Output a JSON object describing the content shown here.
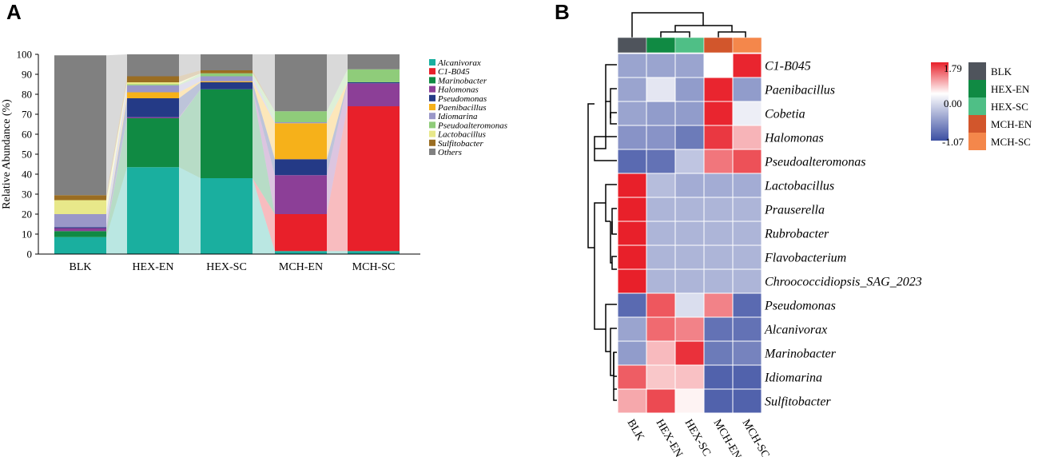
{
  "panels": {
    "a": "A",
    "b": "B"
  },
  "chart_data": [
    {
      "type": "stacked-bar",
      "ylabel": "Relative Abundance (%)",
      "ylim": [
        0,
        100
      ],
      "yticks": [
        "0",
        "10",
        "20",
        "30",
        "40",
        "50",
        "60",
        "70",
        "80",
        "90",
        "100"
      ],
      "categories": [
        "BLK",
        "HEX-EN",
        "HEX-SC",
        "MCH-EN",
        "MCH-SC"
      ],
      "series": [
        {
          "name": "Alcanivorax",
          "color": "#1aaf9f",
          "values": [
            8.5,
            43.5,
            38.0,
            1.5,
            1.5
          ]
        },
        {
          "name": "C1-B045",
          "color": "#e8202a",
          "values": [
            0,
            0,
            0,
            18.5,
            72.5
          ]
        },
        {
          "name": "Marinobacter",
          "color": "#108a43",
          "values": [
            3.0,
            24.5,
            44.5,
            0,
            0
          ]
        },
        {
          "name": "Halomonas",
          "color": "#8c3f97",
          "values": [
            1.5,
            0.5,
            0,
            19.5,
            11.5
          ]
        },
        {
          "name": "Pseudomonas",
          "color": "#243a86",
          "values": [
            0.5,
            9.5,
            3.5,
            8.0,
            0.5
          ]
        },
        {
          "name": "Paenibacillus",
          "color": "#f6b11a",
          "values": [
            0,
            3.0,
            0.5,
            18.0,
            0
          ]
        },
        {
          "name": "Idiomarina",
          "color": "#9a97c8",
          "values": [
            6.5,
            3.5,
            2.5,
            0.5,
            0
          ]
        },
        {
          "name": "Pseudoalteromonas",
          "color": "#8fcc7a",
          "values": [
            0,
            0.5,
            1.5,
            5.5,
            6.5
          ]
        },
        {
          "name": "Lactobacillus",
          "color": "#e8e88a",
          "values": [
            7.0,
            1.0,
            0,
            0,
            0
          ]
        },
        {
          "name": "Sulfitobacter",
          "color": "#9a6d22",
          "values": [
            2.5,
            3.0,
            1.5,
            0,
            0
          ]
        },
        {
          "name": "Others",
          "color": "#808080",
          "values": [
            70.0,
            11.0,
            8.0,
            28.5,
            7.5
          ]
        }
      ]
    },
    {
      "type": "heatmap",
      "columns": [
        "BLK",
        "HEX-EN",
        "HEX-SC",
        "MCH-EN",
        "MCH-SC"
      ],
      "column_colors": [
        "#4f545c",
        "#108a43",
        "#4fbf86",
        "#d2562c",
        "#f4874b"
      ],
      "rows": [
        "C1-B045",
        "Paenibacillus",
        "Cobetia",
        "Halomonas",
        "Pseudoalteromonas",
        "Lactobacillus",
        "Prauserella",
        "Rubrobacter",
        "Flavobacterium",
        "Chroococcidiopsis_SAG_2023",
        "Pseudomonas",
        "Alcanivorax",
        "Marinobacter",
        "Idiomarina",
        "Sulfitobacter"
      ],
      "values": [
        [
          -0.55,
          -0.55,
          -0.55,
          0.0,
          1.75
        ],
        [
          -0.55,
          -0.15,
          -0.6,
          1.75,
          -0.6
        ],
        [
          -0.55,
          -0.6,
          -0.6,
          1.75,
          -0.1
        ],
        [
          -0.65,
          -0.65,
          -0.8,
          1.6,
          0.6
        ],
        [
          -0.9,
          -0.85,
          -0.35,
          1.1,
          1.4
        ],
        [
          1.79,
          -0.4,
          -0.5,
          -0.5,
          -0.5
        ],
        [
          1.79,
          -0.45,
          -0.45,
          -0.45,
          -0.45
        ],
        [
          1.79,
          -0.45,
          -0.45,
          -0.45,
          -0.45
        ],
        [
          1.79,
          -0.45,
          -0.45,
          -0.45,
          -0.45
        ],
        [
          1.79,
          -0.45,
          -0.45,
          -0.45,
          -0.45
        ],
        [
          -0.9,
          1.35,
          -0.2,
          1.0,
          -0.9
        ],
        [
          -0.55,
          1.2,
          1.0,
          -0.85,
          -0.85
        ],
        [
          -0.6,
          0.55,
          1.65,
          -0.8,
          -0.75
        ],
        [
          1.3,
          0.45,
          0.5,
          -0.95,
          -0.95
        ],
        [
          0.7,
          1.45,
          0.1,
          -0.95,
          -0.95
        ]
      ],
      "scale": {
        "max": "1.79",
        "mid": "0.00",
        "min": "-1.07",
        "max_v": 1.79,
        "min_v": -1.07
      },
      "group_legend": [
        "BLK",
        "HEX-EN",
        "HEX-SC",
        "MCH-EN",
        "MCH-SC"
      ]
    }
  ]
}
